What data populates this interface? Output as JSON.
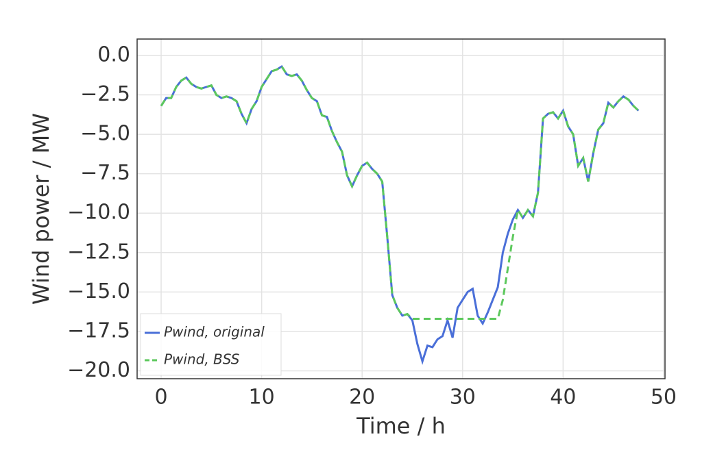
{
  "chart_data": {
    "type": "line",
    "xlabel": "Time / h",
    "ylabel": "Wind power / MW",
    "x": [
      0,
      0.5,
      1,
      1.5,
      2,
      2.5,
      3,
      3.5,
      4,
      4.5,
      5,
      5.5,
      6,
      6.5,
      7,
      7.5,
      8,
      8.5,
      9,
      9.5,
      10,
      10.5,
      11,
      11.5,
      12,
      12.5,
      13,
      13.5,
      14,
      14.5,
      15,
      15.5,
      16,
      16.5,
      17,
      17.5,
      18,
      18.5,
      19,
      19.5,
      20,
      20.5,
      21,
      21.5,
      22,
      22.5,
      23,
      23.5,
      24,
      24.5,
      25,
      25.5,
      26,
      26.5,
      27,
      27.5,
      28,
      28.5,
      29,
      29.5,
      30,
      30.5,
      31,
      31.5,
      32,
      32.5,
      33,
      33.5,
      34,
      34.5,
      35,
      35.5,
      36,
      36.5,
      37,
      37.5,
      38,
      38.5,
      39,
      39.5,
      40,
      40.5,
      41,
      41.5,
      42,
      42.5,
      43,
      43.5,
      44,
      44.5,
      45,
      45.5,
      46,
      46.5,
      47,
      47.5
    ],
    "series": [
      {
        "name": "Pwind, original",
        "color": "#4a6fd8",
        "dash": false,
        "values": [
          -3.2,
          -2.7,
          -2.7,
          -2.0,
          -1.6,
          -1.4,
          -1.8,
          -2.0,
          -2.1,
          -2.0,
          -1.9,
          -2.5,
          -2.7,
          -2.6,
          -2.7,
          -2.9,
          -3.7,
          -4.3,
          -3.4,
          -2.9,
          -2.0,
          -1.5,
          -1.0,
          -0.9,
          -0.7,
          -1.2,
          -1.3,
          -1.2,
          -1.6,
          -2.2,
          -2.7,
          -2.9,
          -3.8,
          -3.9,
          -4.8,
          -5.5,
          -6.1,
          -7.6,
          -8.3,
          -7.6,
          -7.0,
          -6.8,
          -7.2,
          -7.5,
          -8.0,
          -11.5,
          -15.2,
          -16.0,
          -16.5,
          -16.4,
          -16.8,
          -18.3,
          -19.4,
          -18.4,
          -18.5,
          -18.0,
          -17.8,
          -16.8,
          -17.9,
          -16.0,
          -15.5,
          -15.0,
          -14.8,
          -16.5,
          -17.0,
          -16.3,
          -15.5,
          -14.7,
          -12.5,
          -11.3,
          -10.4,
          -9.8,
          -10.3,
          -9.8,
          -10.2,
          -8.7,
          -4.0,
          -3.7,
          -3.6,
          -4.0,
          -3.5,
          -4.5,
          -5.0,
          -7.0,
          -6.5,
          -8.0,
          -6.2,
          -4.7,
          -4.3,
          -3.0,
          -3.3,
          -2.9,
          -2.6,
          -2.8,
          -3.2,
          -3.5
        ]
      },
      {
        "name": "Pwind, BSS",
        "color": "#5cc85c",
        "dash": true,
        "values": [
          -3.2,
          -2.7,
          -2.7,
          -2.0,
          -1.6,
          -1.4,
          -1.8,
          -2.0,
          -2.1,
          -2.0,
          -1.9,
          -2.5,
          -2.7,
          -2.6,
          -2.7,
          -2.9,
          -3.7,
          -4.3,
          -3.4,
          -2.9,
          -2.0,
          -1.5,
          -1.0,
          -0.9,
          -0.7,
          -1.2,
          -1.3,
          -1.2,
          -1.6,
          -2.2,
          -2.7,
          -2.9,
          -3.8,
          -3.9,
          -4.8,
          -5.5,
          -6.1,
          -7.6,
          -8.3,
          -7.6,
          -7.0,
          -6.8,
          -7.2,
          -7.5,
          -8.0,
          -11.5,
          -15.2,
          -16.0,
          -16.5,
          -16.4,
          -16.7,
          -16.7,
          -16.7,
          -16.7,
          -16.7,
          -16.7,
          -16.7,
          -16.7,
          -16.7,
          -16.7,
          -16.7,
          -16.7,
          -16.7,
          -16.7,
          -16.7,
          -16.7,
          -16.7,
          -16.7,
          -15.5,
          -13.5,
          -11.5,
          -9.8,
          -10.3,
          -9.8,
          -10.2,
          -8.7,
          -4.0,
          -3.7,
          -3.6,
          -4.0,
          -3.5,
          -4.5,
          -5.0,
          -7.0,
          -6.5,
          -8.0,
          -6.2,
          -4.7,
          -4.3,
          -3.0,
          -3.3,
          -2.9,
          -2.6,
          -2.8,
          -3.2,
          -3.5
        ]
      }
    ],
    "xlim": [
      -2.39,
      50.14
    ],
    "xticks": [
      0,
      10,
      20,
      30,
      40,
      50
    ],
    "ylim": [
      -20.5,
      1.04
    ],
    "yticks": [
      {
        "value": 0,
        "label": "0.0"
      },
      {
        "value": -2.5,
        "label": "−2.5"
      },
      {
        "value": -5,
        "label": "−5.0"
      },
      {
        "value": -7.5,
        "label": "−7.5"
      },
      {
        "value": -10,
        "label": "−10.0"
      },
      {
        "value": -12.5,
        "label": "−12.5"
      },
      {
        "value": -15,
        "label": "−15.0"
      },
      {
        "value": -17.5,
        "label": "−17.5"
      },
      {
        "value": -20,
        "label": "−20.0"
      }
    ],
    "grid": true,
    "legend": "lower left"
  }
}
